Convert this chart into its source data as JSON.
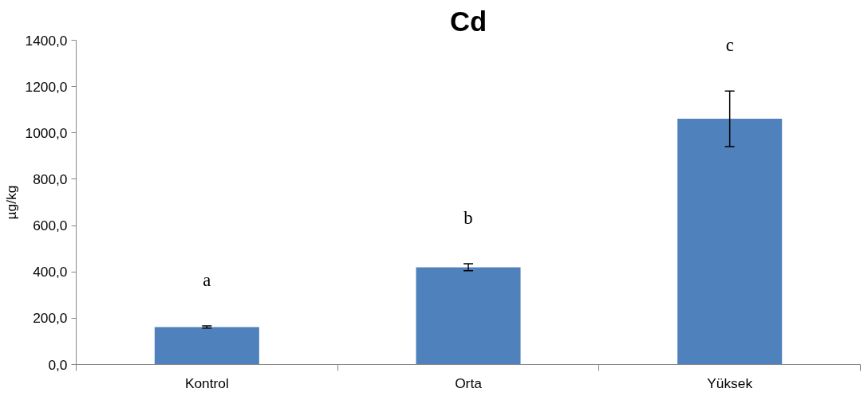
{
  "chart_data": {
    "type": "bar",
    "title": "Cd",
    "ylabel": "µg/kg",
    "categories": [
      "Kontrol",
      "Orta",
      "Yüksek"
    ],
    "values": [
      162,
      420,
      1061
    ],
    "errors": [
      5,
      15,
      120
    ],
    "color": "#4f81bd",
    "ylim": [
      0,
      1400
    ],
    "yticks": [
      {
        "value": 0,
        "label": "0,0"
      },
      {
        "value": 200,
        "label": "200,0"
      },
      {
        "value": 400,
        "label": "400,0"
      },
      {
        "value": 600,
        "label": "600,0"
      },
      {
        "value": 800,
        "label": "800,0"
      },
      {
        "value": 1000,
        "label": "1000,0"
      },
      {
        "value": 1200,
        "label": "1200,0"
      },
      {
        "value": 1400,
        "label": "1400,0"
      }
    ],
    "grid": false,
    "annotations": [
      "a",
      "b",
      "c"
    ]
  }
}
